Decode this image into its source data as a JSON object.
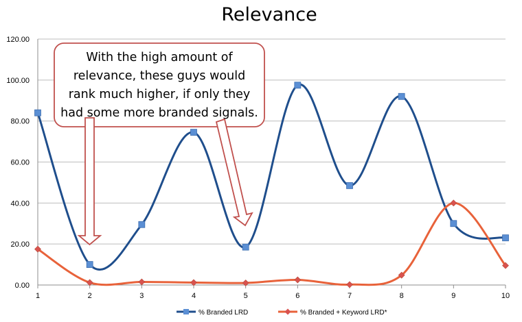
{
  "chart_data": {
    "type": "line",
    "title": "Relevance",
    "categories": [
      "1",
      "2",
      "3",
      "4",
      "5",
      "6",
      "7",
      "8",
      "9",
      "10"
    ],
    "ylim": [
      0,
      120
    ],
    "yticks": [
      "0.00",
      "20.00",
      "40.00",
      "60.00",
      "80.00",
      "100.00",
      "120.00"
    ],
    "grid": true,
    "legend_position": "bottom",
    "series": [
      {
        "name": "% Branded LRD",
        "color": "#1f4e8c",
        "marker_color": "#5b8fd4",
        "marker": "square",
        "values": [
          84,
          10,
          29.5,
          74.5,
          18.5,
          97.5,
          48.5,
          92,
          30,
          23
        ]
      },
      {
        "name": "% Branded + Keyword LRD*",
        "color": "#e8623a",
        "marker_color": "#d9534f",
        "marker": "diamond",
        "values": [
          17.5,
          1.2,
          1.5,
          1.2,
          1,
          2.5,
          0.2,
          4.8,
          40,
          9.5
        ]
      }
    ],
    "annotation": {
      "lines": [
        "With the high amount of",
        "relevance, these guys would",
        "rank much higher, if only they",
        "had some more branded signals."
      ]
    }
  }
}
